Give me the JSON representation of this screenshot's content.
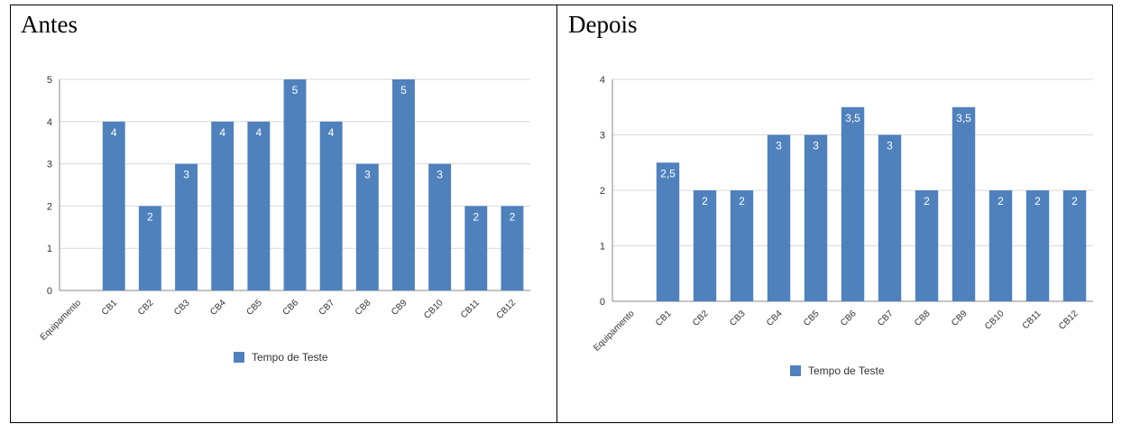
{
  "chart_data": [
    {
      "type": "bar",
      "title": "Antes",
      "categories": [
        "Equipamento",
        "CB1",
        "CB2",
        "CB3",
        "CB4",
        "CB5",
        "CB6",
        "CB7",
        "CB8",
        "CB9",
        "CB10",
        "CB11",
        "CB12"
      ],
      "series": [
        {
          "name": "Tempo de Teste",
          "values": [
            null,
            4,
            2,
            3,
            4,
            4,
            5,
            4,
            3,
            5,
            3,
            2,
            2
          ],
          "labels": [
            "",
            "4",
            "2",
            "3",
            "4",
            "4",
            "5",
            "4",
            "3",
            "5",
            "3",
            "2",
            "2"
          ]
        }
      ],
      "ylim": [
        0,
        5
      ],
      "yticks": [
        "0",
        "1",
        "2",
        "3",
        "4",
        "5"
      ],
      "grid": true,
      "legend": "bottom",
      "color": "#4f81bd"
    },
    {
      "type": "bar",
      "title": "Depois",
      "categories": [
        "Equipamento",
        "CB1",
        "CB2",
        "CB3",
        "CB4",
        "CB5",
        "CB6",
        "CB7",
        "CB8",
        "CB9",
        "CB10",
        "CB11",
        "CB12"
      ],
      "series": [
        {
          "name": "Tempo de Teste",
          "values": [
            null,
            2.5,
            2,
            2,
            3,
            3,
            3.5,
            3,
            2,
            3.5,
            2,
            2,
            2
          ],
          "labels": [
            "",
            "2,5",
            "2",
            "2",
            "3",
            "3",
            "3,5",
            "3",
            "2",
            "3,5",
            "2",
            "2",
            "2"
          ]
        }
      ],
      "ylim": [
        0,
        4
      ],
      "yticks": [
        "0",
        "1",
        "2",
        "3",
        "4"
      ],
      "grid": true,
      "legend": "bottom",
      "color": "#4f81bd"
    }
  ]
}
